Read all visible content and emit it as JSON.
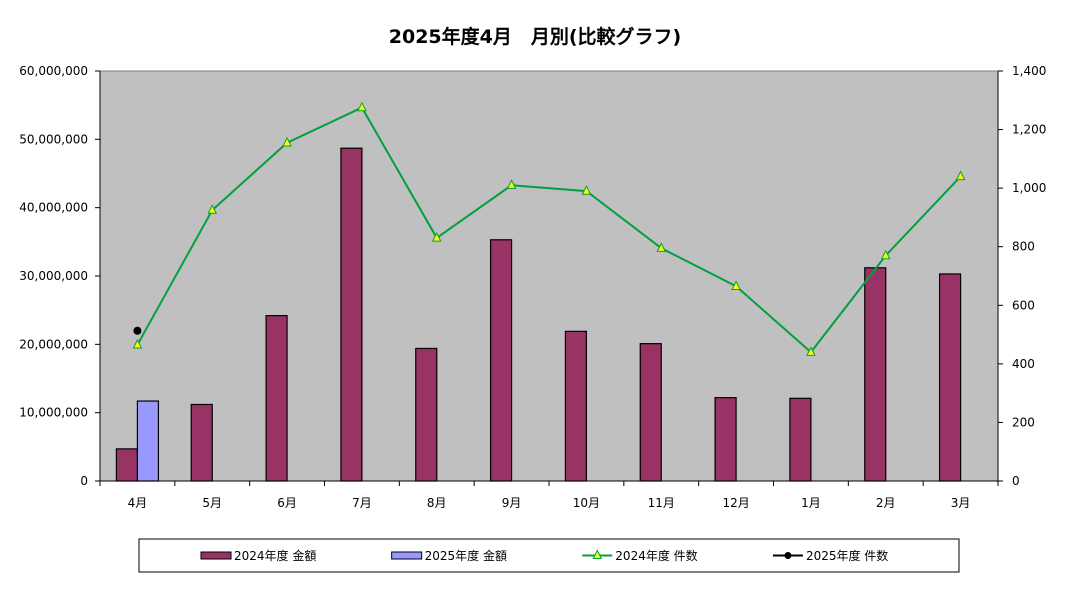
{
  "chart_data": {
    "type": "bar",
    "title": "2025年度4月　月別(比較グラフ)",
    "categories": [
      "4月",
      "5月",
      "6月",
      "7月",
      "8月",
      "9月",
      "10月",
      "11月",
      "12月",
      "1月",
      "2月",
      "3月"
    ],
    "y_left": {
      "ylim": [
        0,
        60000000
      ],
      "ticks": [
        0,
        10000000,
        20000000,
        30000000,
        40000000,
        50000000,
        60000000
      ],
      "tick_labels": [
        "0",
        "10,000,000",
        "20,000,000",
        "30,000,000",
        "40,000,000",
        "50,000,000",
        "60,000,000"
      ]
    },
    "y_right": {
      "ylim": [
        0,
        1400
      ],
      "ticks": [
        0,
        200,
        400,
        600,
        800,
        1000,
        1200,
        1400
      ],
      "tick_labels": [
        "0",
        "200",
        "400",
        "600",
        "800",
        "1,000",
        "1,200",
        "1,400"
      ]
    },
    "grid": false,
    "legend_position": "bottom",
    "series": [
      {
        "name": "2024年度 金額",
        "type": "bar",
        "axis": "left",
        "color": "#993366",
        "values": [
          4700000,
          11200000,
          24200000,
          48700000,
          19400000,
          35300000,
          21900000,
          20100000,
          12200000,
          12100000,
          31200000,
          30300000
        ]
      },
      {
        "name": "2025年度 金額",
        "type": "bar",
        "axis": "left",
        "color": "#9999FF",
        "values": [
          11700000,
          null,
          null,
          null,
          null,
          null,
          null,
          null,
          null,
          null,
          null,
          null
        ]
      },
      {
        "name": "2024年度 件数",
        "type": "line",
        "axis": "right",
        "color": "#00A040",
        "marker": "triangle",
        "marker_color": "#FFFF00",
        "values": [
          465,
          925,
          1155,
          1275,
          830,
          1010,
          990,
          795,
          665,
          440,
          770,
          1040
        ]
      },
      {
        "name": "2025年度 件数",
        "type": "line",
        "axis": "right",
        "color": "#000000",
        "marker": "circle",
        "values": [
          513,
          null,
          null,
          null,
          null,
          null,
          null,
          null,
          null,
          null,
          null,
          null
        ]
      }
    ]
  }
}
